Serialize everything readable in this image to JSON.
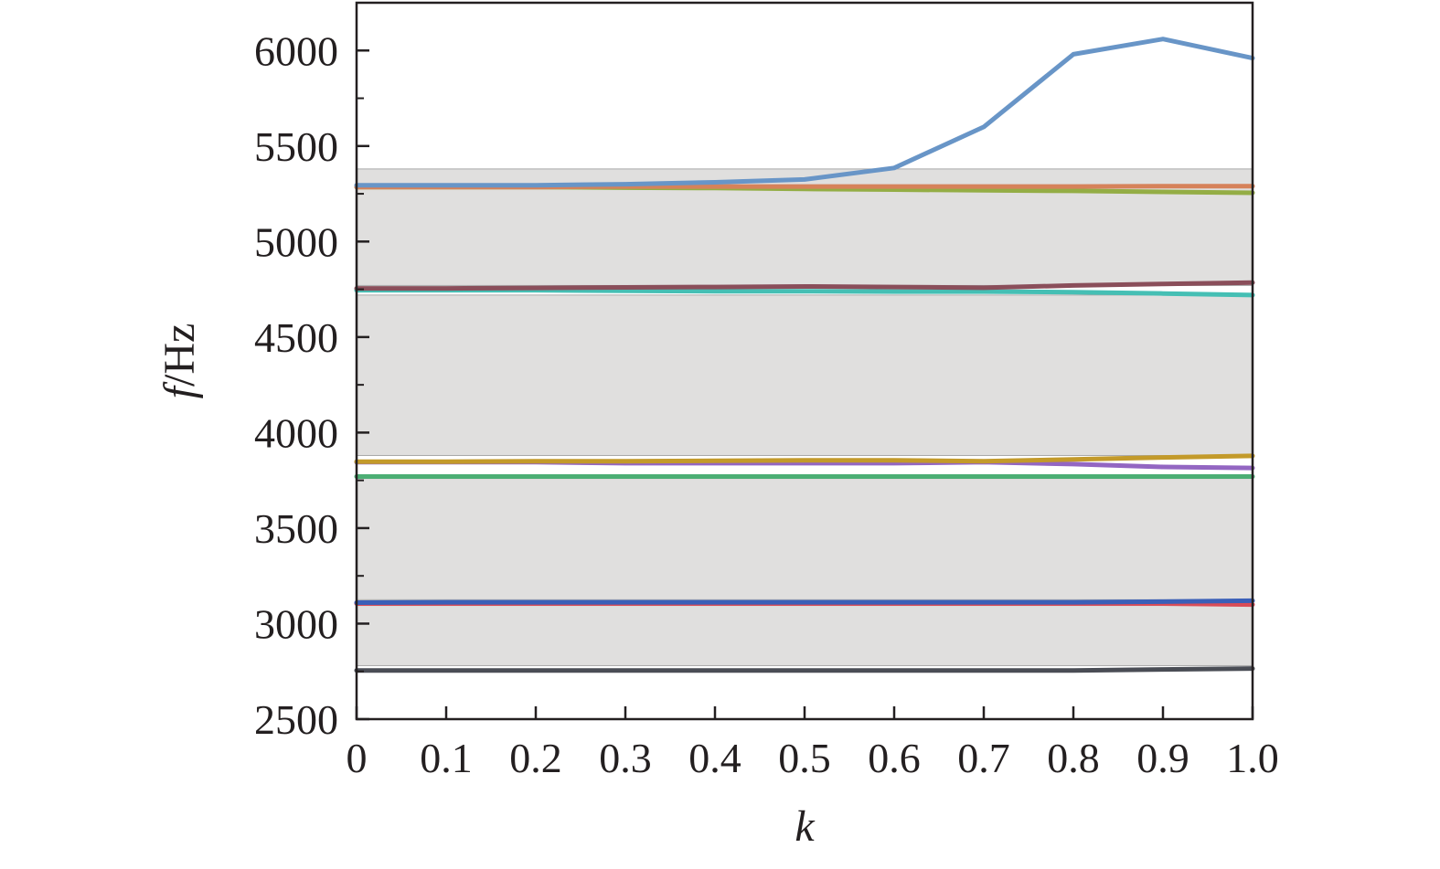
{
  "chart_data": {
    "type": "line",
    "xlabel": "k",
    "ylabel_italic": "f",
    "ylabel_rest": "/Hz",
    "xlim": [
      0,
      1.0
    ],
    "ylim": [
      2500,
      6250
    ],
    "x_ticks": [
      0,
      0.1,
      0.2,
      0.3,
      0.4,
      0.5,
      0.6,
      0.7,
      0.8,
      0.9,
      1.0
    ],
    "x_tick_labels": [
      "0",
      "0.1",
      "0.2",
      "0.3",
      "0.4",
      "0.5",
      "0.6",
      "0.7",
      "0.8",
      "0.9",
      "1.0"
    ],
    "y_ticks": [
      2500,
      3000,
      3500,
      4000,
      4500,
      5000,
      5500,
      6000
    ],
    "y_tick_labels": [
      "2500",
      "3000",
      "3500",
      "4000",
      "4500",
      "5000",
      "5500",
      "6000"
    ],
    "y_minor_ticks": [
      2750,
      3250,
      3750,
      4250,
      4750,
      5250,
      5750
    ],
    "grid": false,
    "band_color": "#e0dfde",
    "bands": [
      {
        "from": 2780,
        "to": 3095
      },
      {
        "from": 3125,
        "to": 3760
      },
      {
        "from": 3880,
        "to": 4720
      },
      {
        "from": 4770,
        "to": 5380
      }
    ],
    "x": [
      0,
      0.1,
      0.2,
      0.3,
      0.4,
      0.5,
      0.6,
      0.7,
      0.8,
      0.9,
      1.0
    ],
    "series": [
      {
        "color": "#4a4d55",
        "values": [
          2755,
          2755,
          2755,
          2755,
          2755,
          2755,
          2755,
          2755,
          2755,
          2760,
          2765
        ]
      },
      {
        "color": "#d94c57",
        "values": [
          3105,
          3105,
          3105,
          3105,
          3105,
          3105,
          3105,
          3105,
          3105,
          3105,
          3100
        ]
      },
      {
        "color": "#3a5fb8",
        "values": [
          3110,
          3112,
          3112,
          3112,
          3112,
          3112,
          3112,
          3112,
          3112,
          3115,
          3120
        ]
      },
      {
        "color": "#4cae74",
        "values": [
          3770,
          3770,
          3770,
          3770,
          3770,
          3770,
          3770,
          3770,
          3770,
          3770,
          3770
        ]
      },
      {
        "color": "#9366c2",
        "values": [
          3845,
          3845,
          3845,
          3840,
          3840,
          3840,
          3840,
          3845,
          3835,
          3820,
          3815
        ]
      },
      {
        "color": "#c39a2a",
        "values": [
          3848,
          3848,
          3850,
          3850,
          3852,
          3855,
          3855,
          3850,
          3860,
          3870,
          3878
        ]
      },
      {
        "color": "#45bfb4",
        "values": [
          4745,
          4745,
          4745,
          4742,
          4740,
          4740,
          4738,
          4738,
          4735,
          4728,
          4720
        ]
      },
      {
        "color": "#8a4e5a",
        "values": [
          4755,
          4755,
          4757,
          4760,
          4762,
          4765,
          4762,
          4758,
          4770,
          4778,
          4785
        ]
      },
      {
        "color": "#94ad45",
        "values": [
          5285,
          5285,
          5285,
          5282,
          5280,
          5275,
          5272,
          5268,
          5265,
          5260,
          5255
        ]
      },
      {
        "color": "#d6825a",
        "values": [
          5285,
          5285,
          5285,
          5288,
          5288,
          5288,
          5288,
          5288,
          5288,
          5290,
          5290
        ]
      },
      {
        "color": "#6895c7",
        "values": [
          5295,
          5295,
          5295,
          5300,
          5310,
          5325,
          5385,
          5600,
          5980,
          6060,
          5960
        ]
      }
    ]
  }
}
